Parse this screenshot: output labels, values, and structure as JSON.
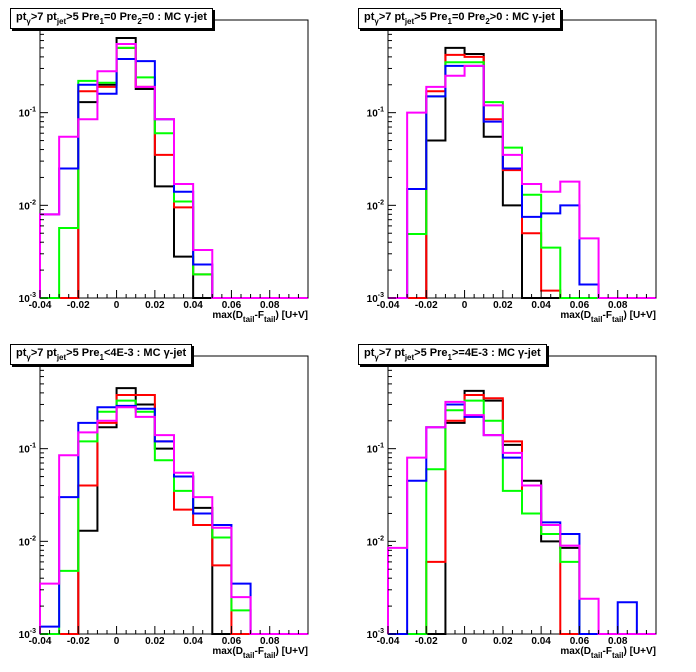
{
  "chart_data": [
    {
      "type": "step-histogram",
      "title_parts": [
        "pt",
        "γ",
        ">7  pt",
        "jet",
        ">5 Pre",
        "1",
        "=0 Pre",
        "2",
        "=0 : MC γ-jet"
      ],
      "xlabel_parts": [
        "max(D",
        "tail",
        "-F",
        "tail",
        ") [U+V]"
      ],
      "xlim": [
        -0.04,
        0.1
      ],
      "ylim": [
        0.001,
        1
      ],
      "y_scale": "log",
      "bin_edges": [
        -0.04,
        -0.03,
        -0.02,
        -0.01,
        0.0,
        0.01,
        0.02,
        0.03,
        0.04,
        0.05,
        0.06,
        0.07,
        0.08,
        0.09,
        0.1
      ],
      "x_tick_labels": [
        "-0.04",
        "-0.02",
        "0",
        "0.02",
        "0.04",
        "0.06",
        "0.08"
      ],
      "y_tick_labels": [
        "10-3",
        "10-2",
        "10-1"
      ],
      "series": [
        {
          "color": "#000000",
          "values": [
            0.001,
            0.001,
            0.13,
            0.2,
            0.64,
            0.18,
            0.016,
            0.0028,
            0.001,
            0.001,
            0.001,
            0.001,
            0.001,
            0.001
          ]
        },
        {
          "color": "#ff0000",
          "values": [
            0.001,
            0.001,
            0.17,
            0.19,
            0.5,
            0.19,
            0.035,
            0.0095,
            0.0018,
            0.001,
            0.001,
            0.001,
            0.001,
            0.001
          ]
        },
        {
          "color": "#00ff00",
          "values": [
            0.001,
            0.0057,
            0.22,
            0.21,
            0.5,
            0.24,
            0.06,
            0.011,
            0.0018,
            0.001,
            0.001,
            0.001,
            0.001,
            0.001
          ]
        },
        {
          "color": "#0000ff",
          "values": [
            0.008,
            0.025,
            0.2,
            0.16,
            0.38,
            0.36,
            0.085,
            0.014,
            0.0023,
            0.001,
            0.001,
            0.001,
            0.001,
            0.001
          ]
        },
        {
          "color": "#ff00ff",
          "values": [
            0.008,
            0.055,
            0.085,
            0.28,
            0.55,
            0.19,
            0.085,
            0.017,
            0.0033,
            0.001,
            0.001,
            0.001,
            0.001,
            0.001
          ]
        }
      ]
    },
    {
      "type": "step-histogram",
      "title_parts": [
        "pt",
        "γ",
        ">7  pt",
        "jet",
        ">5 Pre",
        "1",
        "=0 Pre",
        "2",
        ">0 : MC γ-jet"
      ],
      "xlabel_parts": [
        "max(D",
        "tail",
        "-F",
        "tail",
        ") [U+V]"
      ],
      "xlim": [
        -0.04,
        0.1
      ],
      "ylim": [
        0.001,
        1
      ],
      "y_scale": "log",
      "bin_edges": [
        -0.04,
        -0.03,
        -0.02,
        -0.01,
        0.0,
        0.01,
        0.02,
        0.03,
        0.04,
        0.05,
        0.06,
        0.07,
        0.08,
        0.09,
        0.1
      ],
      "x_tick_labels": [
        "-0.04",
        "-0.02",
        "0",
        "0.02",
        "0.04",
        "0.06",
        "0.08"
      ],
      "y_tick_labels": [
        "10-3",
        "10-2",
        "10-1"
      ],
      "series": [
        {
          "color": "#000000",
          "values": [
            0.001,
            0.00035,
            0.05,
            0.5,
            0.43,
            0.055,
            0.01,
            0.001,
            0.001,
            0.001,
            0.001,
            0.001,
            0.001,
            0.001
          ]
        },
        {
          "color": "#ff0000",
          "values": [
            0.001,
            0.001,
            0.17,
            0.42,
            0.4,
            0.085,
            0.024,
            0.005,
            0.0012,
            0.001,
            0.001,
            0.001,
            0.001,
            0.001
          ]
        },
        {
          "color": "#00ff00",
          "values": [
            0.001,
            0.0049,
            0.15,
            0.35,
            0.35,
            0.13,
            0.042,
            0.013,
            0.0035,
            0.001,
            0.001,
            0.001,
            0.001,
            0.001
          ]
        },
        {
          "color": "#0000ff",
          "values": [
            0.001,
            0.015,
            0.15,
            0.32,
            0.32,
            0.08,
            0.025,
            0.0075,
            0.0082,
            0.01,
            0.0014,
            0.001,
            0.001,
            0.001
          ]
        },
        {
          "color": "#ff00ff",
          "values": [
            0.001,
            0.1,
            0.19,
            0.25,
            0.32,
            0.12,
            0.035,
            0.017,
            0.014,
            0.018,
            0.0044,
            0.001,
            0.001,
            0.001
          ]
        }
      ]
    },
    {
      "type": "step-histogram",
      "title_parts": [
        "pt",
        "γ",
        ">7  pt",
        "jet",
        ">5 Pre",
        "1",
        "<4E-3 : MC γ-jet"
      ],
      "xlabel_parts": [
        "max(D",
        "tail",
        "-F",
        "tail",
        ") [U+V]"
      ],
      "xlim": [
        -0.04,
        0.1
      ],
      "ylim": [
        0.001,
        1
      ],
      "y_scale": "log",
      "bin_edges": [
        -0.04,
        -0.03,
        -0.02,
        -0.01,
        0.0,
        0.01,
        0.02,
        0.03,
        0.04,
        0.05,
        0.06,
        0.07,
        0.08,
        0.09,
        0.1
      ],
      "x_tick_labels": [
        "-0.04",
        "-0.02",
        "0",
        "0.02",
        "0.04",
        "0.06",
        "0.08"
      ],
      "y_tick_labels": [
        "10-3",
        "10-2",
        "10-1"
      ],
      "series": [
        {
          "color": "#000000",
          "values": [
            0.001,
            0.001,
            0.013,
            0.17,
            0.45,
            0.3,
            0.1,
            0.05,
            0.023,
            0.001,
            0.001,
            0.001,
            0.001,
            0.001
          ]
        },
        {
          "color": "#ff0000",
          "values": [
            0.001,
            0.001,
            0.04,
            0.19,
            0.38,
            0.38,
            0.12,
            0.022,
            0.015,
            0.0055,
            0.001,
            0.001,
            0.001,
            0.001
          ]
        },
        {
          "color": "#00ff00",
          "values": [
            0.001,
            0.0048,
            0.12,
            0.25,
            0.33,
            0.25,
            0.075,
            0.035,
            0.02,
            0.011,
            0.0018,
            0.001,
            0.001,
            0.001
          ]
        },
        {
          "color": "#0000ff",
          "values": [
            0.0012,
            0.03,
            0.19,
            0.28,
            0.29,
            0.27,
            0.12,
            0.05,
            0.02,
            0.015,
            0.0035,
            0.001,
            0.001,
            0.001
          ]
        },
        {
          "color": "#ff00ff",
          "values": [
            0.0035,
            0.085,
            0.15,
            0.2,
            0.28,
            0.22,
            0.14,
            0.055,
            0.03,
            0.014,
            0.0025,
            0.001,
            0.001,
            0.001
          ]
        }
      ]
    },
    {
      "type": "step-histogram",
      "title_parts": [
        "pt",
        "γ",
        ">7  pt",
        "jet",
        ">5 Pre",
        "1",
        ">=4E-3 : MC γ-jet"
      ],
      "xlabel_parts": [
        "max(D",
        "tail",
        "-F",
        "tail",
        ") [U+V]"
      ],
      "xlim": [
        -0.04,
        0.1
      ],
      "ylim": [
        0.001,
        1
      ],
      "y_scale": "log",
      "bin_edges": [
        -0.04,
        -0.03,
        -0.02,
        -0.01,
        0.0,
        0.01,
        0.02,
        0.03,
        0.04,
        0.05,
        0.06,
        0.07,
        0.08,
        0.09,
        0.1
      ],
      "x_tick_labels": [
        "-0.04",
        "-0.02",
        "0",
        "0.02",
        "0.04",
        "0.06",
        "0.08"
      ],
      "y_tick_labels": [
        "10-3",
        "10-2",
        "10-1"
      ],
      "series": [
        {
          "color": "#000000",
          "values": [
            0.001,
            0.001,
            0.001,
            0.19,
            0.42,
            0.33,
            0.11,
            0.045,
            0.01,
            0.0085,
            0.001,
            0.001,
            0.001,
            0.001
          ]
        },
        {
          "color": "#ff0000",
          "values": [
            0.001,
            0.001,
            0.006,
            0.2,
            0.38,
            0.35,
            0.12,
            0.02,
            0.012,
            0.001,
            0.001,
            0.001,
            0.001,
            0.001
          ]
        },
        {
          "color": "#00ff00",
          "values": [
            0.001,
            0.001,
            0.06,
            0.26,
            0.33,
            0.2,
            0.035,
            0.02,
            0.012,
            0.006,
            0.001,
            0.001,
            0.001,
            0.001
          ]
        },
        {
          "color": "#0000ff",
          "values": [
            0.001,
            0.045,
            0.17,
            0.3,
            0.22,
            0.14,
            0.08,
            0.04,
            0.016,
            0.012,
            0.001,
            0.001,
            0.0022,
            0.001
          ]
        },
        {
          "color": "#ff00ff",
          "values": [
            0.0085,
            0.08,
            0.17,
            0.32,
            0.23,
            0.14,
            0.09,
            0.04,
            0.015,
            0.009,
            0.0024,
            0.001,
            0.001,
            0.001
          ]
        }
      ]
    }
  ]
}
